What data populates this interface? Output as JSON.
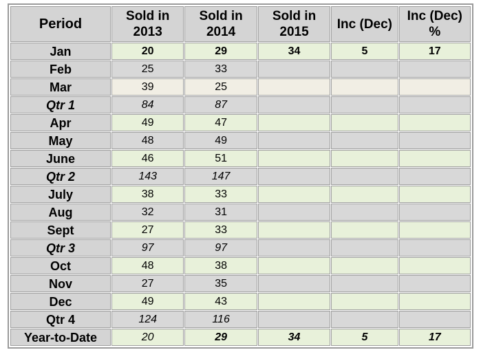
{
  "headers": [
    "Period",
    "Sold in 2013",
    "Sold in 2014",
    "Sold in 2015",
    "Inc (Dec)",
    "Inc (Dec) %"
  ],
  "header_lines": [
    [
      "Period"
    ],
    [
      "Sold in",
      "2013"
    ],
    [
      "Sold in",
      "2014"
    ],
    [
      "Sold in",
      "2015"
    ],
    [
      "Inc (Dec)"
    ],
    [
      "Inc (Dec)",
      "%"
    ]
  ],
  "rows": [
    {
      "period": "Jan",
      "v2013": "20",
      "v2014": "29",
      "v2015": "34",
      "inc": "5",
      "incpct": "17",
      "kind": "month",
      "bg": "green"
    },
    {
      "period": "Feb",
      "v2013": "25",
      "v2014": "33",
      "v2015": "",
      "inc": "",
      "incpct": "",
      "kind": "month",
      "bg": "grey"
    },
    {
      "period": "Mar",
      "v2013": "39",
      "v2014": "25",
      "v2015": "",
      "inc": "",
      "incpct": "",
      "kind": "month",
      "bg": "beige"
    },
    {
      "period": "Qtr 1",
      "v2013": "84",
      "v2014": "87",
      "v2015": "",
      "inc": "",
      "incpct": "",
      "kind": "qtr",
      "bg": "grey"
    },
    {
      "period": "Apr",
      "v2013": "49",
      "v2014": "47",
      "v2015": "",
      "inc": "",
      "incpct": "",
      "kind": "month",
      "bg": "green"
    },
    {
      "period": "May",
      "v2013": "48",
      "v2014": "49",
      "v2015": "",
      "inc": "",
      "incpct": "",
      "kind": "month",
      "bg": "grey"
    },
    {
      "period": "June",
      "v2013": "46",
      "v2014": "51",
      "v2015": "",
      "inc": "",
      "incpct": "",
      "kind": "month",
      "bg": "green"
    },
    {
      "period": "Qtr 2",
      "v2013": "143",
      "v2014": "147",
      "v2015": "",
      "inc": "",
      "incpct": "",
      "kind": "qtr",
      "bg": "grey"
    },
    {
      "period": "July",
      "v2013": "38",
      "v2014": "33",
      "v2015": "",
      "inc": "",
      "incpct": "",
      "kind": "month",
      "bg": "green"
    },
    {
      "period": "Aug",
      "v2013": "32",
      "v2014": "31",
      "v2015": "",
      "inc": "",
      "incpct": "",
      "kind": "month",
      "bg": "grey"
    },
    {
      "period": "Sept",
      "v2013": "27",
      "v2014": "33",
      "v2015": "",
      "inc": "",
      "incpct": "",
      "kind": "month",
      "bg": "green"
    },
    {
      "period": "Qtr 3",
      "v2013": "97",
      "v2014": "97",
      "v2015": "",
      "inc": "",
      "incpct": "",
      "kind": "qtr",
      "bg": "grey"
    },
    {
      "period": "Oct",
      "v2013": "48",
      "v2014": "38",
      "v2015": "",
      "inc": "",
      "incpct": "",
      "kind": "month",
      "bg": "green"
    },
    {
      "period": "Nov",
      "v2013": "27",
      "v2014": "35",
      "v2015": "",
      "inc": "",
      "incpct": "",
      "kind": "month",
      "bg": "grey"
    },
    {
      "period": "Dec",
      "v2013": "49",
      "v2014": "43",
      "v2015": "",
      "inc": "",
      "incpct": "",
      "kind": "month",
      "bg": "green"
    },
    {
      "period": "Qtr 4",
      "v2013": "124",
      "v2014": "116",
      "v2015": "",
      "inc": "",
      "incpct": "",
      "kind": "qtr4",
      "bg": "grey"
    },
    {
      "period": "Year-to-Date",
      "v2013": "20",
      "v2014": "29",
      "v2015": "34",
      "inc": "5",
      "incpct": "17",
      "kind": "ytd",
      "bg": "green"
    }
  ],
  "colors": {
    "header_bg": "#d4d4d4",
    "green": "#e8f1da",
    "grey": "#d8d8d8",
    "beige": "#f1eee4"
  }
}
